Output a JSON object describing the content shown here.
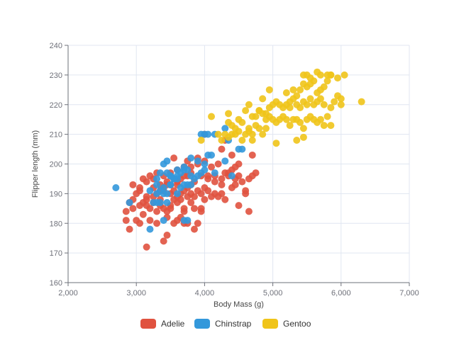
{
  "chart_data": {
    "type": "scatter",
    "title": "",
    "xlabel": "Body Mass (g)",
    "ylabel": "Flipper length (mm)",
    "xlim": [
      2000,
      7000
    ],
    "ylim": [
      160,
      240
    ],
    "x_ticks": [
      2000,
      3000,
      4000,
      5000,
      6000,
      7000
    ],
    "x_tick_labels": [
      "2,000",
      "3,000",
      "4,000",
      "5,000",
      "6,000",
      "7,000"
    ],
    "y_ticks": [
      160,
      170,
      180,
      190,
      200,
      210,
      220,
      230,
      240
    ],
    "y_tick_labels": [
      "160",
      "170",
      "180",
      "190",
      "200",
      "210",
      "220",
      "230",
      "240"
    ],
    "grid": true,
    "legend_position": "bottom-center",
    "series": [
      {
        "name": "Adelie",
        "color": "#e0523f",
        "points": [
          [
            3150,
            172
          ],
          [
            3300,
            180
          ],
          [
            3400,
            174
          ],
          [
            3450,
            176
          ],
          [
            2850,
            181
          ],
          [
            3000,
            181
          ],
          [
            2900,
            178
          ],
          [
            3050,
            180
          ],
          [
            3200,
            181
          ],
          [
            3550,
            180
          ],
          [
            3600,
            181
          ],
          [
            3700,
            180
          ],
          [
            3850,
            178
          ],
          [
            3900,
            180
          ],
          [
            3300,
            184
          ],
          [
            3400,
            185
          ],
          [
            3500,
            186
          ],
          [
            3600,
            187
          ],
          [
            3700,
            185
          ],
          [
            3800,
            187
          ],
          [
            3950,
            185
          ],
          [
            2950,
            185
          ],
          [
            2850,
            184
          ],
          [
            3100,
            183
          ],
          [
            3200,
            185
          ],
          [
            3250,
            187
          ],
          [
            3350,
            186
          ],
          [
            3450,
            184
          ],
          [
            3550,
            188
          ],
          [
            3650,
            188
          ],
          [
            3750,
            189
          ],
          [
            3850,
            185
          ],
          [
            2900,
            187
          ],
          [
            2950,
            188
          ],
          [
            3000,
            190
          ],
          [
            3050,
            191
          ],
          [
            3100,
            187
          ],
          [
            3150,
            188
          ],
          [
            3250,
            189
          ],
          [
            3300,
            190
          ],
          [
            3350,
            191
          ],
          [
            3400,
            192
          ],
          [
            3450,
            193
          ],
          [
            3500,
            190
          ],
          [
            3550,
            191
          ],
          [
            3600,
            193
          ],
          [
            3650,
            190
          ],
          [
            3700,
            191
          ],
          [
            3750,
            192
          ],
          [
            3800,
            193
          ],
          [
            3850,
            189
          ],
          [
            3900,
            191
          ],
          [
            3950,
            190
          ],
          [
            4000,
            192
          ],
          [
            4050,
            191
          ],
          [
            4100,
            189
          ],
          [
            4150,
            190
          ],
          [
            4250,
            190
          ],
          [
            4300,
            188
          ],
          [
            4400,
            192
          ],
          [
            4500,
            186
          ],
          [
            4600,
            190
          ],
          [
            4650,
            184
          ],
          [
            2950,
            193
          ],
          [
            3050,
            192
          ],
          [
            3150,
            194
          ],
          [
            3250,
            195
          ],
          [
            3350,
            193
          ],
          [
            3450,
            194
          ],
          [
            3550,
            195
          ],
          [
            3650,
            195
          ],
          [
            3750,
            196
          ],
          [
            3850,
            194
          ],
          [
            3950,
            196
          ],
          [
            4050,
            195
          ],
          [
            4150,
            196
          ],
          [
            4250,
            195
          ],
          [
            4350,
            197
          ],
          [
            4450,
            193
          ],
          [
            4500,
            196
          ],
          [
            4550,
            194
          ],
          [
            4600,
            191
          ],
          [
            4650,
            195
          ],
          [
            4750,
            197
          ],
          [
            3500,
            197
          ],
          [
            3600,
            198
          ],
          [
            3700,
            199
          ],
          [
            3800,
            199
          ],
          [
            3900,
            200
          ],
          [
            4000,
            201
          ],
          [
            4100,
            199
          ],
          [
            4200,
            200
          ],
          [
            4300,
            197
          ],
          [
            4400,
            198
          ],
          [
            4450,
            199
          ],
          [
            4700,
            196
          ],
          [
            3550,
            202
          ],
          [
            3750,
            201
          ],
          [
            3900,
            202
          ],
          [
            4000,
            210
          ],
          [
            4250,
            205
          ],
          [
            4300,
            208
          ],
          [
            4400,
            203
          ],
          [
            4500,
            200
          ],
          [
            4700,
            203
          ],
          [
            3100,
            195
          ],
          [
            3200,
            196
          ],
          [
            3300,
            197
          ],
          [
            3400,
            196
          ],
          [
            3500,
            193
          ],
          [
            3600,
            194
          ],
          [
            3700,
            196
          ],
          [
            3800,
            197
          ],
          [
            4050,
            196
          ],
          [
            4150,
            194
          ],
          [
            4250,
            193
          ],
          [
            4350,
            196
          ],
          [
            4450,
            195
          ],
          [
            3450,
            182
          ],
          [
            3650,
            182
          ],
          [
            3750,
            180
          ],
          [
            3950,
            184
          ],
          [
            3150,
            186
          ],
          [
            3350,
            188
          ],
          [
            3500,
            185
          ],
          [
            3700,
            184
          ],
          [
            4000,
            188
          ],
          [
            4200,
            189
          ],
          [
            3050,
            186
          ],
          [
            3150,
            189
          ],
          [
            3250,
            192
          ],
          [
            3400,
            191
          ],
          [
            3600,
            189
          ],
          [
            3800,
            190
          ]
        ]
      },
      {
        "name": "Chinstrap",
        "color": "#3398db",
        "points": [
          [
            2700,
            192
          ],
          [
            2900,
            187
          ],
          [
            3200,
            178
          ],
          [
            3250,
            187
          ],
          [
            3300,
            187
          ],
          [
            3350,
            187
          ],
          [
            3400,
            181
          ],
          [
            3450,
            187
          ],
          [
            3700,
            181
          ],
          [
            3750,
            181
          ],
          [
            3300,
            190
          ],
          [
            3350,
            191
          ],
          [
            3400,
            190
          ],
          [
            3450,
            190
          ],
          [
            3500,
            193
          ],
          [
            3550,
            195
          ],
          [
            3600,
            195
          ],
          [
            3650,
            192
          ],
          [
            3700,
            193
          ],
          [
            3750,
            193
          ],
          [
            3800,
            193
          ],
          [
            3300,
            193
          ],
          [
            3350,
            197
          ],
          [
            3450,
            197
          ],
          [
            3500,
            196
          ],
          [
            3550,
            195
          ],
          [
            3600,
            196
          ],
          [
            3650,
            197
          ],
          [
            3700,
            198
          ],
          [
            3750,
            198
          ],
          [
            3800,
            196
          ],
          [
            3850,
            195
          ],
          [
            3900,
            196
          ],
          [
            3950,
            197
          ],
          [
            4000,
            198
          ],
          [
            3400,
            200
          ],
          [
            3450,
            201
          ],
          [
            3500,
            196
          ],
          [
            3600,
            198
          ],
          [
            3700,
            199
          ],
          [
            3800,
            202
          ],
          [
            3900,
            201
          ],
          [
            4000,
            200
          ],
          [
            4050,
            203
          ],
          [
            4100,
            203
          ],
          [
            4150,
            197
          ],
          [
            4300,
            201
          ],
          [
            4400,
            196
          ],
          [
            4500,
            205
          ],
          [
            4550,
            205
          ],
          [
            3950,
            210
          ],
          [
            4000,
            210
          ],
          [
            4050,
            210
          ],
          [
            4150,
            210
          ],
          [
            4300,
            212
          ],
          [
            4350,
            208
          ],
          [
            3300,
            195
          ],
          [
            3400,
            192
          ],
          [
            3500,
            193
          ],
          [
            3600,
            190
          ],
          [
            3200,
            191
          ]
        ]
      },
      {
        "name": "Gentoo",
        "color": "#f0c419",
        "points": [
          [
            3950,
            208
          ],
          [
            4100,
            216
          ],
          [
            4200,
            210
          ],
          [
            4250,
            208
          ],
          [
            4300,
            210
          ],
          [
            4350,
            209
          ],
          [
            4400,
            210
          ],
          [
            4450,
            210
          ],
          [
            4500,
            211
          ],
          [
            4550,
            208
          ],
          [
            4600,
            210
          ],
          [
            4650,
            212
          ],
          [
            4700,
            210
          ],
          [
            4750,
            213
          ],
          [
            4800,
            212
          ],
          [
            4850,
            210
          ],
          [
            4350,
            214
          ],
          [
            4400,
            213
          ],
          [
            4450,
            212
          ],
          [
            4500,
            215
          ],
          [
            4550,
            214
          ],
          [
            4600,
            218
          ],
          [
            4700,
            216
          ],
          [
            4750,
            216
          ],
          [
            4800,
            218
          ],
          [
            4850,
            217
          ],
          [
            4900,
            215
          ],
          [
            4950,
            216
          ],
          [
            5000,
            215
          ],
          [
            5050,
            214
          ],
          [
            5100,
            215
          ],
          [
            5150,
            216
          ],
          [
            5200,
            215
          ],
          [
            5250,
            213
          ],
          [
            5300,
            215
          ],
          [
            5350,
            215
          ],
          [
            5400,
            214
          ],
          [
            5450,
            212
          ],
          [
            5500,
            215
          ],
          [
            5550,
            216
          ],
          [
            5600,
            215
          ],
          [
            5650,
            214
          ],
          [
            5700,
            215
          ],
          [
            5750,
            213
          ],
          [
            5800,
            216
          ],
          [
            4350,
            217
          ],
          [
            4650,
            220
          ],
          [
            4800,
            218
          ],
          [
            4850,
            222
          ],
          [
            4900,
            217
          ],
          [
            4950,
            219
          ],
          [
            5000,
            220
          ],
          [
            5050,
            221
          ],
          [
            5100,
            220
          ],
          [
            5150,
            219
          ],
          [
            5200,
            220
          ],
          [
            5250,
            221
          ],
          [
            5300,
            222
          ],
          [
            5350,
            220
          ],
          [
            5400,
            219
          ],
          [
            5450,
            221
          ],
          [
            5500,
            220
          ],
          [
            5550,
            222
          ],
          [
            5600,
            220
          ],
          [
            5650,
            221
          ],
          [
            5700,
            222
          ],
          [
            5750,
            220
          ],
          [
            5850,
            219
          ],
          [
            5900,
            221
          ],
          [
            5950,
            223
          ],
          [
            6000,
            222
          ],
          [
            6000,
            220
          ],
          [
            4950,
            225
          ],
          [
            5200,
            224
          ],
          [
            5300,
            225
          ],
          [
            5400,
            225
          ],
          [
            5450,
            227
          ],
          [
            5500,
            226
          ],
          [
            5550,
            227
          ],
          [
            5600,
            228
          ],
          [
            5650,
            224
          ],
          [
            5700,
            225
          ],
          [
            5750,
            226
          ],
          [
            5800,
            228
          ],
          [
            5850,
            230
          ],
          [
            5950,
            229
          ],
          [
            5450,
            230
          ],
          [
            5500,
            230
          ],
          [
            5550,
            229
          ],
          [
            5650,
            231
          ],
          [
            5700,
            230
          ],
          [
            5800,
            230
          ],
          [
            5850,
            230
          ],
          [
            6050,
            230
          ],
          [
            5350,
            223
          ],
          [
            5250,
            219
          ],
          [
            5050,
            207
          ],
          [
            5450,
            209
          ],
          [
            5350,
            208
          ],
          [
            5850,
            213
          ],
          [
            6300,
            221
          ],
          [
            4650,
            211
          ],
          [
            4700,
            208
          ],
          [
            4900,
            212
          ]
        ]
      }
    ]
  }
}
